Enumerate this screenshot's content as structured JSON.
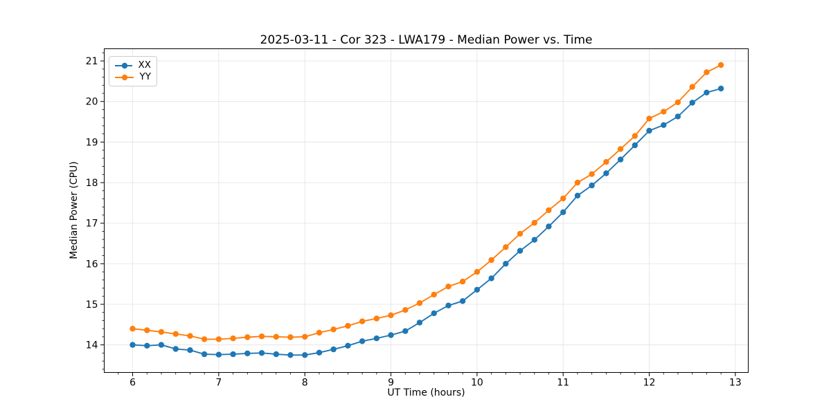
{
  "chart_data": {
    "type": "line",
    "title": "2025-03-11 - Cor 323 - LWA179 - Median Power vs. Time",
    "xlabel": "UT Time (hours)",
    "ylabel": "Median Power (CPU)",
    "x": [
      6.0,
      6.167,
      6.333,
      6.5,
      6.667,
      6.833,
      7.0,
      7.167,
      7.333,
      7.5,
      7.667,
      7.833,
      8.0,
      8.167,
      8.333,
      8.5,
      8.667,
      8.833,
      9.0,
      9.167,
      9.333,
      9.5,
      9.667,
      9.833,
      10.0,
      10.167,
      10.333,
      10.5,
      10.667,
      10.833,
      11.0,
      11.167,
      11.333,
      11.5,
      11.667,
      11.833,
      12.0,
      12.167,
      12.333,
      12.5,
      12.667,
      12.833
    ],
    "series": [
      {
        "name": "XX",
        "color": "#1f77b4",
        "values": [
          14.0,
          13.98,
          14.0,
          13.9,
          13.87,
          13.77,
          13.76,
          13.77,
          13.79,
          13.8,
          13.77,
          13.75,
          13.75,
          13.81,
          13.89,
          13.98,
          14.09,
          14.16,
          14.24,
          14.34,
          14.55,
          14.78,
          14.97,
          15.08,
          15.36,
          15.64,
          16.0,
          16.32,
          16.59,
          16.92,
          17.27,
          17.68,
          17.93,
          18.23,
          18.57,
          18.92,
          19.28,
          19.42,
          19.63,
          19.97,
          20.22,
          20.32
        ]
      },
      {
        "name": "YY",
        "color": "#ff7f0e",
        "values": [
          14.4,
          14.36,
          14.32,
          14.27,
          14.22,
          14.14,
          14.14,
          14.16,
          14.19,
          14.21,
          14.2,
          14.19,
          14.2,
          14.3,
          14.38,
          14.47,
          14.58,
          14.65,
          14.73,
          14.86,
          15.03,
          15.24,
          15.44,
          15.56,
          15.8,
          16.09,
          16.41,
          16.74,
          17.01,
          17.32,
          17.61,
          18.0,
          18.21,
          18.51,
          18.83,
          19.15,
          19.58,
          19.75,
          19.98,
          20.36,
          20.72,
          20.9
        ]
      }
    ],
    "xlim": [
      5.67,
      13.15
    ],
    "ylim": [
      13.32,
      21.3
    ],
    "xticks": [
      6,
      7,
      8,
      9,
      10,
      11,
      12,
      13
    ],
    "yticks": [
      14,
      15,
      16,
      17,
      18,
      19,
      20,
      21
    ],
    "minor_x_step": 0.16667,
    "minor_y_step": 0.2,
    "grid": "major-only",
    "grid_color": "#e5e5e5",
    "axis_color": "#000000",
    "legend_position": "upper-left",
    "marker": "circle"
  }
}
